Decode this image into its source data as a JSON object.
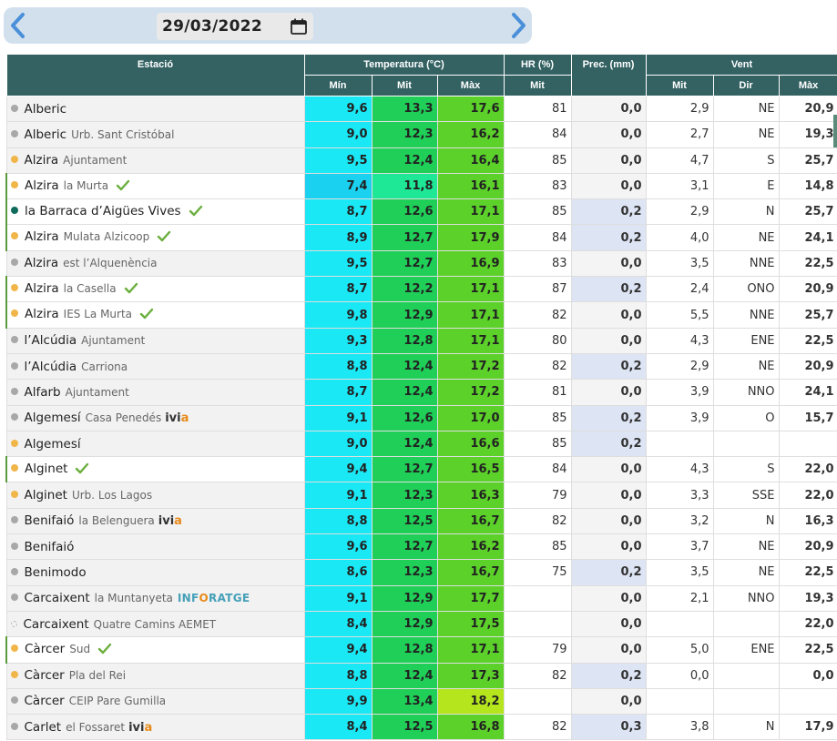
{
  "nav": {
    "date": "29/03/2022",
    "prev_icon": "chevron-left-icon",
    "next_icon": "chevron-right-icon",
    "calendar_icon": "calendar-icon"
  },
  "headers": {
    "station": "Estació",
    "temperature": "Temperatura (°C)",
    "humidity": "HR (%)",
    "precipitation": "Prec. (mm)",
    "wind": "Vent",
    "min": "Mín",
    "mit": "Mit",
    "max": "Màx",
    "hr_mit": "Mit",
    "wind_mit": "Mit",
    "wind_dir": "Dir",
    "wind_max": "Màx"
  },
  "colors": {
    "header_bg": "#346263",
    "dot_orange": "#f0b64a",
    "dot_gray": "#a8a8a8",
    "dot_teal": "#0f6b5c",
    "check_green": "#6aae3c",
    "tmin_cyan": "#1ae8f5",
    "tmit_green": "#1fcf58",
    "tmax_green": "#5bd12a",
    "prec_wet": "#dde4f3"
  },
  "rows": [
    {
      "name": "Alberic",
      "sub": "",
      "dot": "gray",
      "check": false,
      "logo": "",
      "min": "9,6",
      "mit": "13,3",
      "max": "17,6",
      "hr": "81",
      "prec": "0,0",
      "wmit": "2,9",
      "dir": "NE",
      "wmax": "20,9"
    },
    {
      "name": "Alberic",
      "sub": "Urb. Sant Cristóbal",
      "dot": "gray",
      "check": false,
      "logo": "",
      "min": "9,0",
      "mit": "12,3",
      "max": "16,2",
      "hr": "84",
      "prec": "0,0",
      "wmit": "2,7",
      "dir": "NE",
      "wmax": "19,3"
    },
    {
      "name": "Alzira",
      "sub": "Ajuntament",
      "dot": "orange",
      "check": false,
      "logo": "",
      "min": "9,5",
      "mit": "12,4",
      "max": "16,4",
      "hr": "85",
      "prec": "0,0",
      "wmit": "4,7",
      "dir": "S",
      "wmax": "25,7"
    },
    {
      "name": "Alzira",
      "sub": "la Murta",
      "dot": "orange",
      "check": true,
      "logo": "",
      "min": "7,4",
      "mit": "11,8",
      "max": "16,1",
      "hr": "83",
      "prec": "0,0",
      "wmit": "3,1",
      "dir": "E",
      "wmax": "14,8"
    },
    {
      "name": "la Barraca d’Aigües Vives",
      "sub": "",
      "dot": "teal",
      "check": true,
      "logo": "",
      "min": "8,7",
      "mit": "12,6",
      "max": "17,1",
      "hr": "85",
      "prec": "0,2",
      "wmit": "2,9",
      "dir": "N",
      "wmax": "25,7"
    },
    {
      "name": "Alzira",
      "sub": "Mulata Alzicoop",
      "dot": "orange",
      "check": true,
      "logo": "",
      "min": "8,9",
      "mit": "12,7",
      "max": "17,9",
      "hr": "84",
      "prec": "0,2",
      "wmit": "4,0",
      "dir": "NE",
      "wmax": "24,1"
    },
    {
      "name": "Alzira",
      "sub": "est l’Alquenència",
      "dot": "gray",
      "check": false,
      "logo": "",
      "min": "9,5",
      "mit": "12,7",
      "max": "16,9",
      "hr": "83",
      "prec": "0,0",
      "wmit": "3,5",
      "dir": "NNE",
      "wmax": "22,5"
    },
    {
      "name": "Alzira",
      "sub": "la Casella",
      "dot": "orange",
      "check": true,
      "logo": "",
      "min": "8,7",
      "mit": "12,2",
      "max": "17,1",
      "hr": "87",
      "prec": "0,2",
      "wmit": "2,4",
      "dir": "ONO",
      "wmax": "20,9"
    },
    {
      "name": "Alzira",
      "sub": "IES La Murta",
      "dot": "orange",
      "check": true,
      "logo": "",
      "min": "9,8",
      "mit": "12,9",
      "max": "17,1",
      "hr": "82",
      "prec": "0,0",
      "wmit": "5,5",
      "dir": "NNE",
      "wmax": "25,7"
    },
    {
      "name": "l’Alcúdia",
      "sub": "Ajuntament",
      "dot": "gray",
      "check": false,
      "logo": "",
      "min": "9,3",
      "mit": "12,8",
      "max": "17,1",
      "hr": "80",
      "prec": "0,0",
      "wmit": "4,3",
      "dir": "ENE",
      "wmax": "22,5"
    },
    {
      "name": "l’Alcúdia",
      "sub": "Carriona",
      "dot": "gray",
      "check": false,
      "logo": "",
      "min": "8,8",
      "mit": "12,4",
      "max": "17,2",
      "hr": "82",
      "prec": "0,2",
      "wmit": "2,9",
      "dir": "NE",
      "wmax": "20,9"
    },
    {
      "name": "Alfarb",
      "sub": "Ajuntament",
      "dot": "gray",
      "check": false,
      "logo": "",
      "min": "8,7",
      "mit": "12,4",
      "max": "17,2",
      "hr": "81",
      "prec": "0,0",
      "wmit": "3,9",
      "dir": "NNO",
      "wmax": "24,1"
    },
    {
      "name": "Algemesí",
      "sub": "Casa Penedés",
      "dot": "gray",
      "check": false,
      "logo": "ivia",
      "min": "9,1",
      "mit": "12,6",
      "max": "17,0",
      "hr": "85",
      "prec": "0,2",
      "wmit": "3,9",
      "dir": "O",
      "wmax": "15,7"
    },
    {
      "name": "Algemesí",
      "sub": "",
      "dot": "orange",
      "check": false,
      "logo": "",
      "min": "9,0",
      "mit": "12,4",
      "max": "16,6",
      "hr": "85",
      "prec": "0,2",
      "wmit": "",
      "dir": "",
      "wmax": ""
    },
    {
      "name": "Alginet",
      "sub": "",
      "dot": "orange",
      "check": true,
      "logo": "",
      "min": "9,4",
      "mit": "12,7",
      "max": "16,5",
      "hr": "84",
      "prec": "0,0",
      "wmit": "4,3",
      "dir": "S",
      "wmax": "22,0"
    },
    {
      "name": "Alginet",
      "sub": "Urb. Los Lagos",
      "dot": "orange",
      "check": false,
      "logo": "",
      "min": "9,1",
      "mit": "12,3",
      "max": "16,3",
      "hr": "79",
      "prec": "0,0",
      "wmit": "3,3",
      "dir": "SSE",
      "wmax": "22,0"
    },
    {
      "name": "Benifaió",
      "sub": "la Belenguera",
      "dot": "gray",
      "check": false,
      "logo": "ivia",
      "min": "8,8",
      "mit": "12,5",
      "max": "16,7",
      "hr": "82",
      "prec": "0,0",
      "wmit": "3,2",
      "dir": "N",
      "wmax": "16,3"
    },
    {
      "name": "Benifaió",
      "sub": "",
      "dot": "gray",
      "check": false,
      "logo": "",
      "min": "9,6",
      "mit": "12,7",
      "max": "16,2",
      "hr": "85",
      "prec": "0,0",
      "wmit": "3,7",
      "dir": "NE",
      "wmax": "20,9"
    },
    {
      "name": "Benimodo",
      "sub": "",
      "dot": "gray",
      "check": false,
      "logo": "",
      "min": "8,6",
      "mit": "12,3",
      "max": "16,7",
      "hr": "75",
      "prec": "0,2",
      "wmit": "3,5",
      "dir": "NE",
      "wmax": "22,5"
    },
    {
      "name": "Carcaixent",
      "sub": "la Muntanyeta",
      "dot": "gray",
      "check": false,
      "logo": "inforatge",
      "min": "9,1",
      "mit": "12,9",
      "max": "17,7",
      "hr": "",
      "prec": "0,0",
      "wmit": "2,1",
      "dir": "NNO",
      "wmax": "19,3"
    },
    {
      "name": "Carcaixent",
      "sub": "Quatre Camins AEMET",
      "dot": "empty",
      "check": false,
      "logo": "",
      "min": "8,4",
      "mit": "12,9",
      "max": "17,5",
      "hr": "",
      "prec": "0,0",
      "wmit": "",
      "dir": "",
      "wmax": "22,0"
    },
    {
      "name": "Càrcer",
      "sub": "Sud",
      "dot": "orange",
      "check": true,
      "logo": "",
      "min": "9,4",
      "mit": "12,8",
      "max": "17,1",
      "hr": "79",
      "prec": "0,0",
      "wmit": "5,0",
      "dir": "ENE",
      "wmax": "22,5"
    },
    {
      "name": "Càrcer",
      "sub": "Pla del Rei",
      "dot": "orange",
      "check": false,
      "logo": "",
      "min": "8,8",
      "mit": "12,4",
      "max": "17,3",
      "hr": "82",
      "prec": "0,2",
      "wmit": "0,0",
      "dir": "",
      "wmax": "0,0"
    },
    {
      "name": "Càrcer",
      "sub": "CEIP Pare Gumilla",
      "dot": "gray",
      "check": false,
      "logo": "",
      "min": "9,9",
      "mit": "13,4",
      "max": "18,2",
      "hr": "",
      "prec": "0,0",
      "wmit": "",
      "dir": "",
      "wmax": ""
    },
    {
      "name": "Carlet",
      "sub": "el Fossaret",
      "dot": "gray",
      "check": false,
      "logo": "ivia",
      "min": "8,4",
      "mit": "12,5",
      "max": "16,8",
      "hr": "82",
      "prec": "0,3",
      "wmit": "3,8",
      "dir": "N",
      "wmax": "17,9"
    }
  ]
}
